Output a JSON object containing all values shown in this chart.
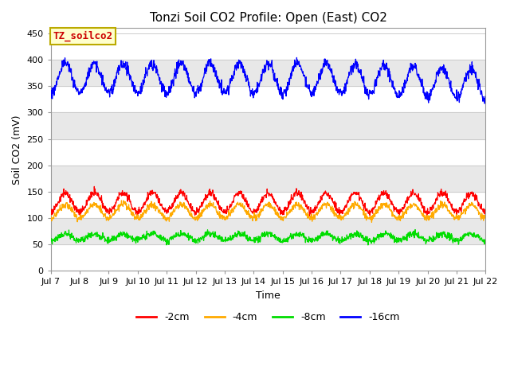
{
  "title": "Tonzi Soil CO2 Profile: Open (East) CO2",
  "ylabel": "Soil CO2 (mV)",
  "xlabel": "Time",
  "ylim": [
    0,
    460
  ],
  "yticks": [
    0,
    50,
    100,
    150,
    200,
    250,
    300,
    350,
    400,
    450
  ],
  "xtick_labels": [
    "Jul 7",
    "Jul 8",
    "Jul 9",
    "Jul 10",
    "Jul 11",
    "Jul 12",
    "Jul 13",
    "Jul 14",
    "Jul 15",
    "Jul 16",
    "Jul 17",
    "Jul 18",
    "Jul 19",
    "Jul 20",
    "Jul 21",
    "Jul 22"
  ],
  "colors": {
    "-2cm": "#ff0000",
    "-4cm": "#ffaa00",
    "-8cm": "#00dd00",
    "-16cm": "#0000ff"
  },
  "annotation_text": "TZ_soilco2",
  "annotation_bg": "#ffffcc",
  "annotation_border": "#bbaa00",
  "annotation_color": "#cc0000",
  "gray_band_color": "#e8e8e8",
  "white_band_color": "#ffffff",
  "title_fontsize": 11,
  "axis_fontsize": 9,
  "tick_fontsize": 8,
  "legend_fontsize": 9
}
